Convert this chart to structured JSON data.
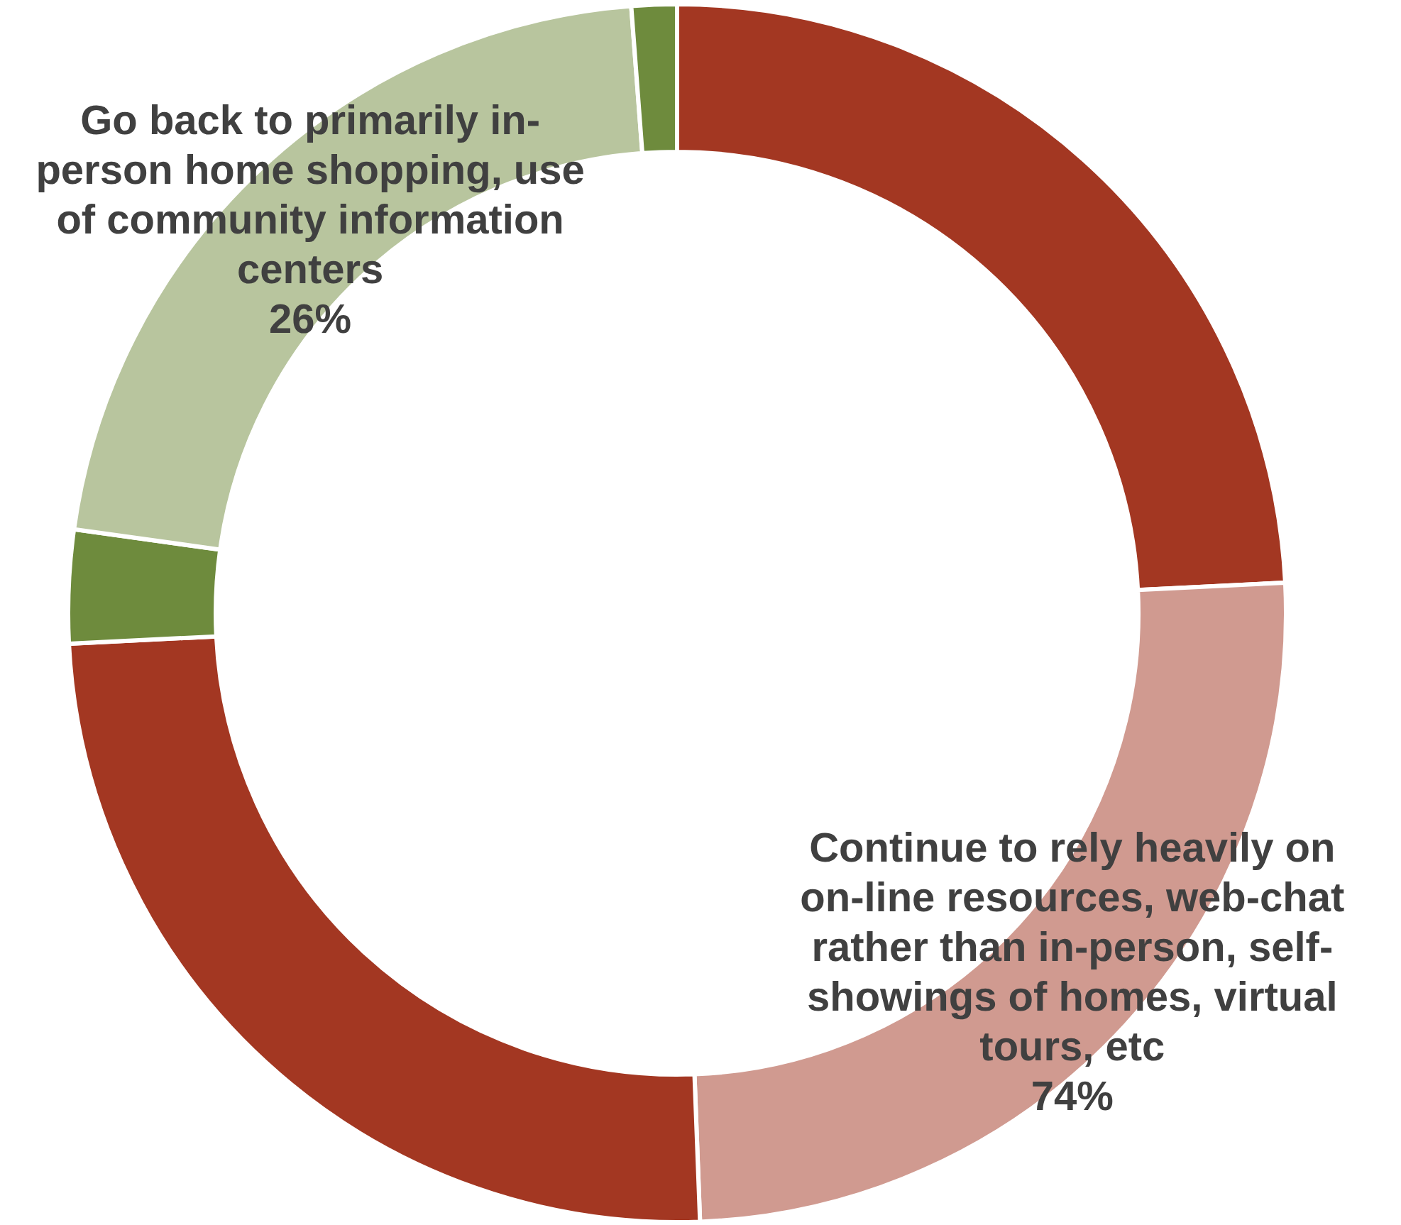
{
  "chart_data": {
    "type": "donut",
    "categories": [
      null,
      "Continue to rely heavily on on-line resources, web-chat rather than in-person, self-showings of homes, virtual tours, etc",
      null,
      null,
      "Go back to primarily in-person home shopping, use of community information centers",
      null
    ],
    "values": [
      24.2,
      25.2,
      24.8,
      3.0,
      21.6,
      1.2
    ],
    "colors": [
      "#a33722",
      "#d09a90",
      "#a33722",
      "#6e8b3d",
      "#b8c59e",
      "#6e8b3d"
    ],
    "annotations": [
      "74%",
      "26%"
    ]
  }
}
